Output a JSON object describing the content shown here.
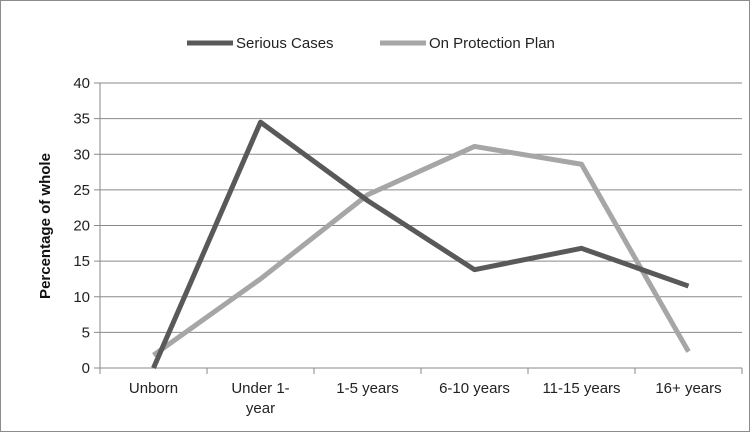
{
  "chart_data": {
    "type": "line",
    "categories": [
      "Unborn",
      "Under 1-\nyear",
      "1-5 years",
      "6-10 years",
      "11-15 years",
      "16+ years"
    ],
    "series": [
      {
        "name": "Serious Cases",
        "color": "#595959",
        "values": [
          0,
          34.5,
          23.5,
          13.8,
          16.8,
          11.5
        ]
      },
      {
        "name": "On Protection Plan",
        "color": "#a6a6a6",
        "values": [
          1.8,
          12.5,
          24.3,
          31.1,
          28.6,
          2.3
        ]
      }
    ],
    "ylabel": "Percentage of whole",
    "ylim": [
      0,
      40
    ],
    "yticks": [
      0,
      5,
      10,
      15,
      20,
      25,
      30,
      35,
      40
    ],
    "grid": true,
    "legend": "top-center"
  }
}
